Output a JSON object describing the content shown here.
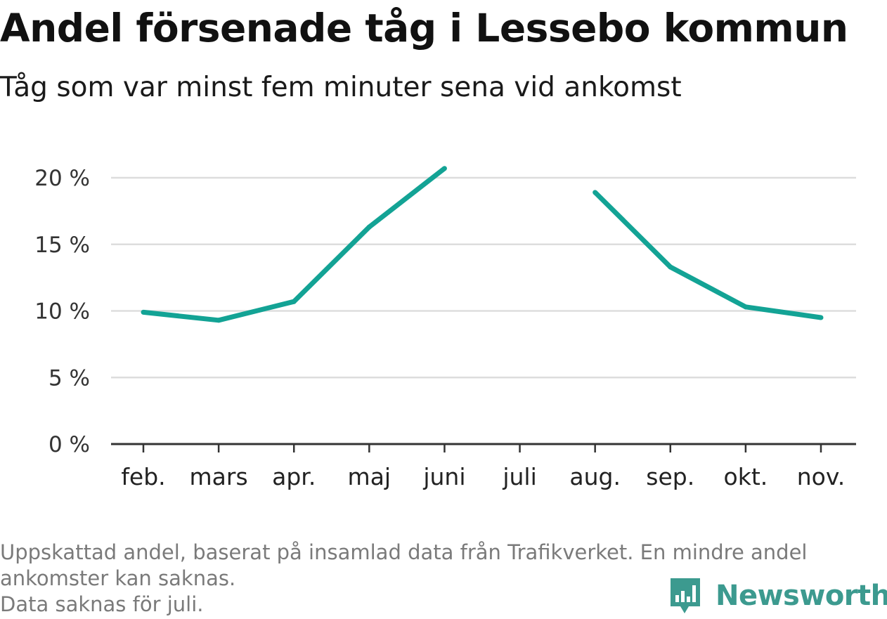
{
  "header": {
    "title": "Andel försenade tåg i Lessebo kommun",
    "subtitle": "Tåg som var minst fem minuter sena vid ankomst"
  },
  "chart_data": {
    "type": "line",
    "title": "Andel försenade tåg i Lessebo kommun",
    "subtitle": "Tåg som var minst fem minuter sena vid ankomst",
    "categories": [
      "feb.",
      "mars",
      "apr.",
      "maj",
      "juni",
      "juli",
      "aug.",
      "sep.",
      "okt.",
      "nov."
    ],
    "series": [
      {
        "values": [
          9.9,
          9.3,
          10.7,
          16.3,
          20.7,
          null,
          18.9,
          13.3,
          10.3,
          9.5
        ],
        "color": "#13a395"
      }
    ],
    "yticks": [
      0,
      5,
      10,
      15,
      20
    ],
    "ytick_labels": [
      "0 %",
      "5 %",
      "10 %",
      "15 %",
      "20 %"
    ],
    "ylim": [
      0,
      20
    ],
    "grid": true,
    "xlabel": "",
    "ylabel": ""
  },
  "footnote": {
    "line1": "Uppskattad andel, baserat på insamlad data från Trafikverket. En mindre andel",
    "line2": "ankomster kan saknas.",
    "line3": "Data saknas för juli."
  },
  "logo": {
    "text": "Newsworthy",
    "color": "#3c9a8f",
    "icon": "bar-chart-speech-bubble-icon"
  },
  "colors": {
    "line": "#13a395",
    "grid": "#dddddd",
    "axis": "#333333"
  }
}
